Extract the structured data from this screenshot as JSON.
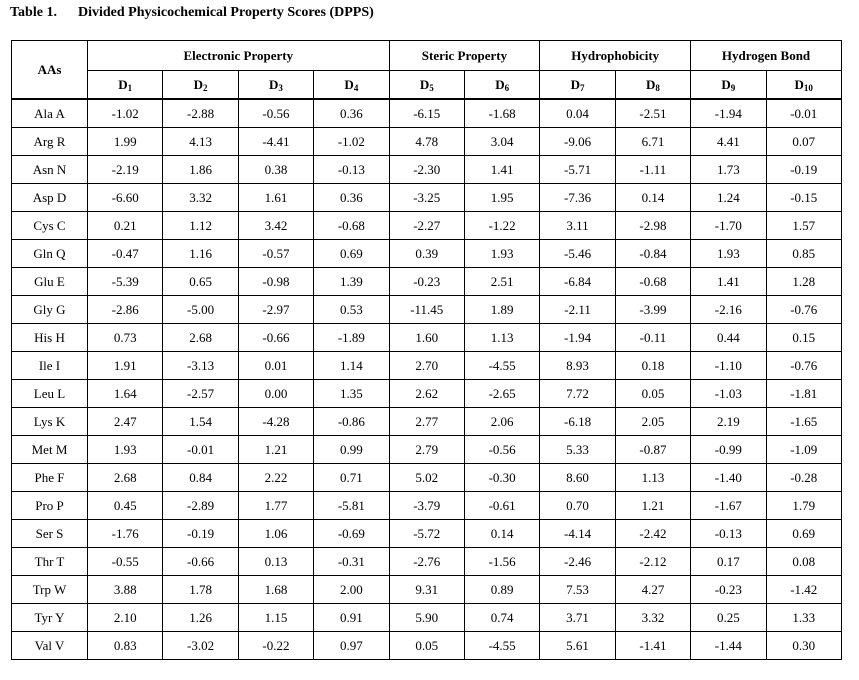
{
  "caption": {
    "number": "Table 1.",
    "title": "Divided Physicochemical Property Scores (DPPS)"
  },
  "header": {
    "row_label": "AAs",
    "groups": [
      {
        "label": "Electronic Property",
        "span": 4
      },
      {
        "label": "Steric Property",
        "span": 2
      },
      {
        "label": "Hydrophobicity",
        "span": 2
      },
      {
        "label": "Hydrogen Bond",
        "span": 2
      }
    ],
    "columns": [
      {
        "base": "D",
        "sub": "1"
      },
      {
        "base": "D",
        "sub": "2"
      },
      {
        "base": "D",
        "sub": "3"
      },
      {
        "base": "D",
        "sub": "4"
      },
      {
        "base": "D",
        "sub": "5"
      },
      {
        "base": "D",
        "sub": "6"
      },
      {
        "base": "D",
        "sub": "7"
      },
      {
        "base": "D",
        "sub": "8"
      },
      {
        "base": "D",
        "sub": "9"
      },
      {
        "base": "D",
        "sub": "10"
      }
    ]
  },
  "rows": [
    {
      "aa": "Ala A",
      "values": [
        "-1.02",
        "-2.88",
        "-0.56",
        "0.36",
        "-6.15",
        "-1.68",
        "0.04",
        "-2.51",
        "-1.94",
        "-0.01"
      ]
    },
    {
      "aa": "Arg R",
      "values": [
        "1.99",
        "4.13",
        "-4.41",
        "-1.02",
        "4.78",
        "3.04",
        "-9.06",
        "6.71",
        "4.41",
        "0.07"
      ]
    },
    {
      "aa": "Asn N",
      "values": [
        "-2.19",
        "1.86",
        "0.38",
        "-0.13",
        "-2.30",
        "1.41",
        "-5.71",
        "-1.11",
        "1.73",
        "-0.19"
      ]
    },
    {
      "aa": "Asp D",
      "values": [
        "-6.60",
        "3.32",
        "1.61",
        "0.36",
        "-3.25",
        "1.95",
        "-7.36",
        "0.14",
        "1.24",
        "-0.15"
      ]
    },
    {
      "aa": "Cys C",
      "values": [
        "0.21",
        "1.12",
        "3.42",
        "-0.68",
        "-2.27",
        "-1.22",
        "3.11",
        "-2.98",
        "-1.70",
        "1.57"
      ]
    },
    {
      "aa": "Gln Q",
      "values": [
        "-0.47",
        "1.16",
        "-0.57",
        "0.69",
        "0.39",
        "1.93",
        "-5.46",
        "-0.84",
        "1.93",
        "0.85"
      ]
    },
    {
      "aa": "Glu E",
      "values": [
        "-5.39",
        "0.65",
        "-0.98",
        "1.39",
        "-0.23",
        "2.51",
        "-6.84",
        "-0.68",
        "1.41",
        "1.28"
      ]
    },
    {
      "aa": "Gly G",
      "values": [
        "-2.86",
        "-5.00",
        "-2.97",
        "0.53",
        "-11.45",
        "1.89",
        "-2.11",
        "-3.99",
        "-2.16",
        "-0.76"
      ]
    },
    {
      "aa": "His H",
      "values": [
        "0.73",
        "2.68",
        "-0.66",
        "-1.89",
        "1.60",
        "1.13",
        "-1.94",
        "-0.11",
        "0.44",
        "0.15"
      ]
    },
    {
      "aa": "Ile I",
      "values": [
        "1.91",
        "-3.13",
        "0.01",
        "1.14",
        "2.70",
        "-4.55",
        "8.93",
        "0.18",
        "-1.10",
        "-0.76"
      ]
    },
    {
      "aa": "Leu L",
      "values": [
        "1.64",
        "-2.57",
        "0.00",
        "1.35",
        "2.62",
        "-2.65",
        "7.72",
        "0.05",
        "-1.03",
        "-1.81"
      ]
    },
    {
      "aa": "Lys K",
      "values": [
        "2.47",
        "1.54",
        "-4.28",
        "-0.86",
        "2.77",
        "2.06",
        "-6.18",
        "2.05",
        "2.19",
        "-1.65"
      ]
    },
    {
      "aa": "Met M",
      "values": [
        "1.93",
        "-0.01",
        "1.21",
        "0.99",
        "2.79",
        "-0.56",
        "5.33",
        "-0.87",
        "-0.99",
        "-1.09"
      ]
    },
    {
      "aa": "Phe F",
      "values": [
        "2.68",
        "0.84",
        "2.22",
        "0.71",
        "5.02",
        "-0.30",
        "8.60",
        "1.13",
        "-1.40",
        "-0.28"
      ]
    },
    {
      "aa": "Pro P",
      "values": [
        "0.45",
        "-2.89",
        "1.77",
        "-5.81",
        "-3.79",
        "-0.61",
        "0.70",
        "1.21",
        "-1.67",
        "1.79"
      ]
    },
    {
      "aa": "Ser S",
      "values": [
        "-1.76",
        "-0.19",
        "1.06",
        "-0.69",
        "-5.72",
        "0.14",
        "-4.14",
        "-2.42",
        "-0.13",
        "0.69"
      ]
    },
    {
      "aa": "Thr T",
      "values": [
        "-0.55",
        "-0.66",
        "0.13",
        "-0.31",
        "-2.76",
        "-1.56",
        "-2.46",
        "-2.12",
        "0.17",
        "0.08"
      ]
    },
    {
      "aa": "Trp W",
      "values": [
        "3.88",
        "1.78",
        "1.68",
        "2.00",
        "9.31",
        "0.89",
        "7.53",
        "4.27",
        "-0.23",
        "-1.42"
      ]
    },
    {
      "aa": "Tyr Y",
      "values": [
        "2.10",
        "1.26",
        "1.15",
        "0.91",
        "5.90",
        "0.74",
        "3.71",
        "3.32",
        "0.25",
        "1.33"
      ]
    },
    {
      "aa": "Val V",
      "values": [
        "0.83",
        "-3.02",
        "-0.22",
        "0.97",
        "0.05",
        "-4.55",
        "5.61",
        "-1.41",
        "-1.44",
        "0.30"
      ]
    }
  ]
}
